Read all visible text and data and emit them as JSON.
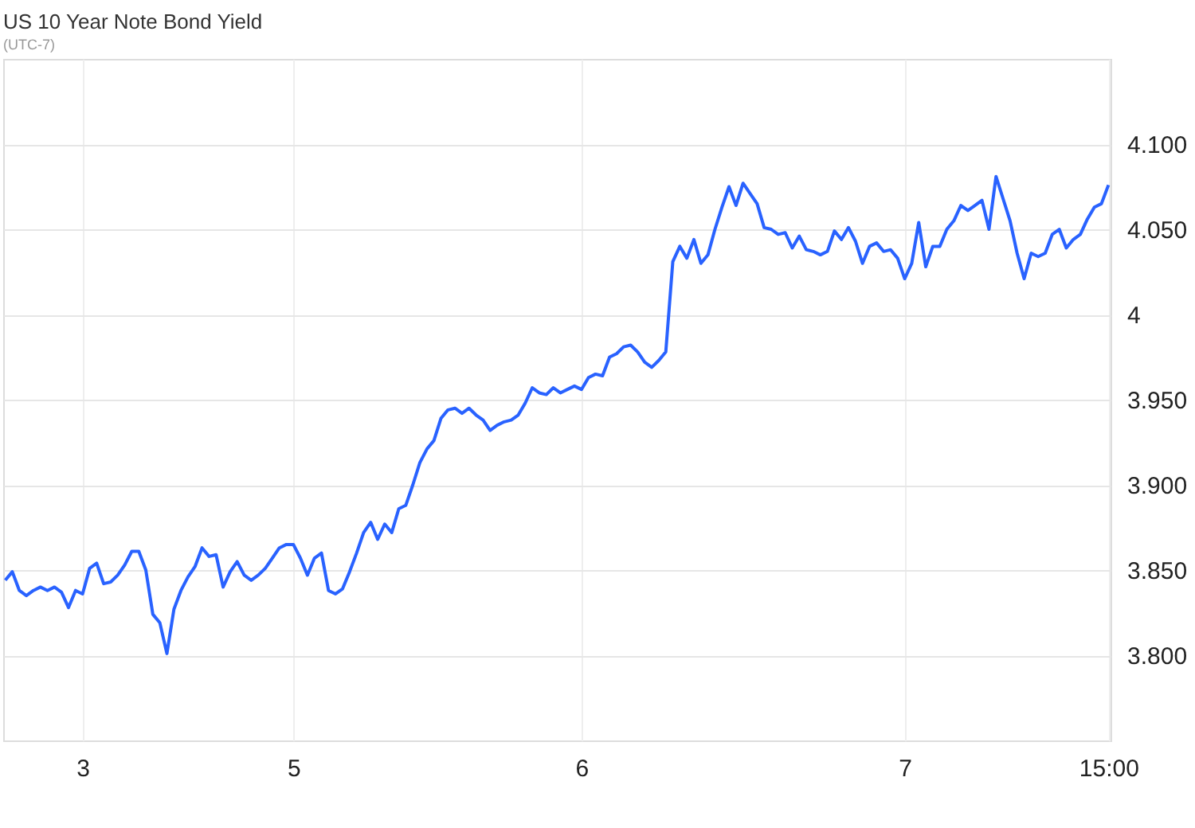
{
  "chart_data": {
    "type": "line",
    "title": "US 10 Year Note Bond Yield",
    "subtitle": "(UTC-7)",
    "color": "#2962ff",
    "line_style": "solid",
    "grid": true,
    "categories": [
      null,
      null,
      null,
      null,
      null,
      null,
      null,
      null,
      null,
      null,
      null,
      "3",
      null,
      null,
      null,
      null,
      null,
      null,
      null,
      null,
      null,
      null,
      null,
      null,
      null,
      null,
      null,
      null,
      null,
      null,
      null,
      null,
      null,
      null,
      null,
      null,
      null,
      null,
      null,
      null,
      null,
      "5",
      null,
      null,
      null,
      null,
      null,
      null,
      null,
      null,
      null,
      null,
      null,
      null,
      null,
      null,
      null,
      null,
      null,
      null,
      null,
      null,
      null,
      null,
      null,
      null,
      null,
      null,
      null,
      null,
      null,
      null,
      null,
      null,
      null,
      null,
      null,
      null,
      null,
      null,
      null,
      null,
      "6",
      null,
      null,
      null,
      null,
      null,
      null,
      null,
      null,
      null,
      null,
      null,
      null,
      null,
      null,
      null,
      null,
      null,
      null,
      null,
      null,
      null,
      null,
      null,
      null,
      null,
      null,
      null,
      null,
      null,
      null,
      null,
      null,
      null,
      null,
      null,
      null,
      null,
      null,
      null,
      null,
      null,
      null,
      null,
      null,
      null,
      "7",
      null,
      null,
      null,
      null,
      null,
      null,
      null,
      null,
      null,
      null,
      null,
      null,
      null,
      null,
      null,
      null,
      null,
      null,
      null,
      null,
      null,
      null,
      null,
      null,
      null,
      null,
      null,
      null,
      "15:00"
    ],
    "values": [
      3.844,
      3.849,
      3.838,
      3.835,
      3.838,
      3.84,
      3.838,
      3.84,
      3.837,
      3.828,
      3.838,
      3.836,
      3.851,
      3.854,
      3.842,
      3.843,
      3.847,
      3.853,
      3.861,
      3.861,
      3.85,
      3.824,
      3.819,
      3.801,
      3.827,
      3.838,
      3.846,
      3.852,
      3.863,
      3.858,
      3.859,
      3.84,
      3.849,
      3.855,
      3.847,
      3.844,
      3.847,
      3.851,
      3.857,
      3.863,
      3.865,
      3.865,
      3.857,
      3.847,
      3.857,
      3.86,
      3.838,
      3.836,
      3.839,
      3.849,
      3.86,
      3.872,
      3.878,
      3.868,
      3.877,
      3.872,
      3.886,
      3.888,
      3.9,
      3.913,
      3.921,
      3.926,
      3.939,
      3.944,
      3.945,
      3.942,
      3.945,
      3.941,
      3.938,
      3.932,
      3.935,
      3.937,
      3.938,
      3.941,
      3.948,
      3.957,
      3.954,
      3.953,
      3.957,
      3.954,
      3.956,
      3.958,
      3.956,
      3.963,
      3.965,
      3.964,
      3.975,
      3.977,
      3.981,
      3.982,
      3.978,
      3.972,
      3.969,
      3.973,
      3.978,
      4.031,
      4.04,
      4.033,
      4.044,
      4.03,
      4.035,
      4.05,
      4.063,
      4.075,
      4.064,
      4.077,
      4.071,
      4.065,
      4.051,
      4.05,
      4.047,
      4.048,
      4.039,
      4.046,
      4.038,
      4.037,
      4.035,
      4.037,
      4.049,
      4.044,
      4.051,
      4.043,
      4.03,
      4.04,
      4.042,
      4.037,
      4.038,
      4.033,
      4.021,
      4.03,
      4.054,
      4.028,
      4.04,
      4.04,
      4.05,
      4.055,
      4.064,
      4.061,
      4.064,
      4.067,
      4.05,
      4.081,
      4.068,
      4.055,
      4.036,
      4.021,
      4.036,
      4.034,
      4.036,
      4.047,
      4.05,
      4.039,
      4.044,
      4.047,
      4.056,
      4.063,
      4.065,
      4.076
    ],
    "ylim": [
      3.75,
      4.15
    ],
    "yticks": [
      {
        "value": 3.8,
        "label": "3.800"
      },
      {
        "value": 3.85,
        "label": "3.850"
      },
      {
        "value": 3.9,
        "label": "3.900"
      },
      {
        "value": 3.95,
        "label": "3.950"
      },
      4,
      {
        "value": 4.05,
        "label": "4.050"
      },
      {
        "value": 4.1,
        "label": "4.100"
      }
    ]
  }
}
